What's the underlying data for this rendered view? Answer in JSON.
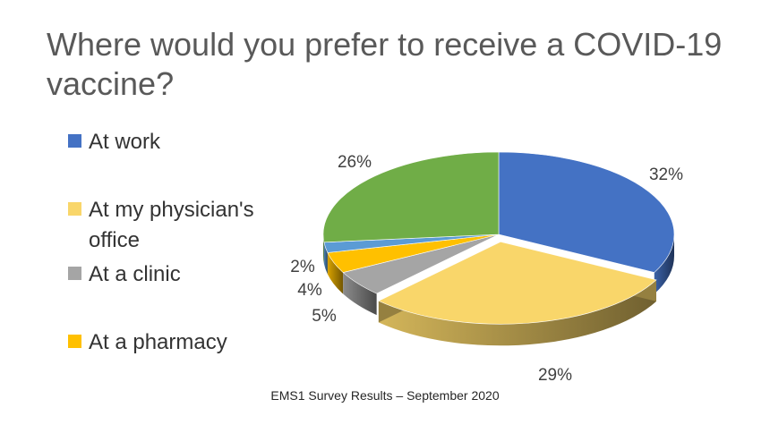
{
  "page": {
    "title": "Where would you prefer to receive a COVID-19 vaccine?",
    "footer": "EMS1 Survey Results – September 2020"
  },
  "chart_data": {
    "type": "pie",
    "style": "3d-exploded",
    "title": "Where would you prefer to receive a COVID-19 vaccine?",
    "legend_position": "left",
    "legend": [
      {
        "label": "At work",
        "color": "#4472C4"
      },
      {
        "label": "At my physician's office",
        "color": "#F9D66A"
      },
      {
        "label": "At a clinic",
        "color": "#A5A5A5"
      },
      {
        "label": "At a pharmacy",
        "color": "#FFC000"
      }
    ],
    "slices": [
      {
        "value": 32,
        "label": "32%",
        "color": "#4472C4"
      },
      {
        "value": 29,
        "label": "29%",
        "color": "#F9D66A"
      },
      {
        "value": 5,
        "label": "5%",
        "color": "#A5A5A5"
      },
      {
        "value": 4,
        "label": "4%",
        "color": "#FFC000"
      },
      {
        "value": 2,
        "label": "2%",
        "color": "#5B9BD5"
      },
      {
        "value": 26,
        "label": "26%",
        "color": "#70AD47"
      }
    ]
  }
}
